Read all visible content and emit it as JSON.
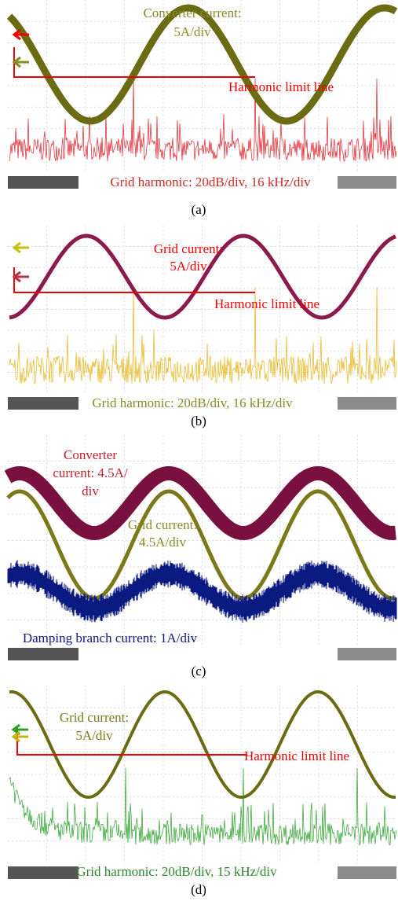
{
  "panels": [
    {
      "caption": "(a)",
      "labels": [
        "Converter current:",
        "5A/div",
        "Harmonic limit line",
        "Grid harmonic: 20dB/div, 16 kHz/div"
      ]
    },
    {
      "caption": "(b)",
      "labels": [
        "Grid current:",
        "5A/div",
        "Harmonic limit line",
        "Grid harmonic: 20dB/div, 16 kHz/div"
      ]
    },
    {
      "caption": "(c)",
      "labels": [
        "Converter",
        "current: 4.5A/",
        "div",
        "Grid current:",
        "4.5A/div",
        "Damping branch current: 1A/div"
      ]
    },
    {
      "caption": "(d)",
      "labels": [
        "Grid current:",
        "5A/div",
        "Harmonic limit line",
        "Grid harmonic: 20dB/div, 15 kHz/div"
      ]
    }
  ]
}
